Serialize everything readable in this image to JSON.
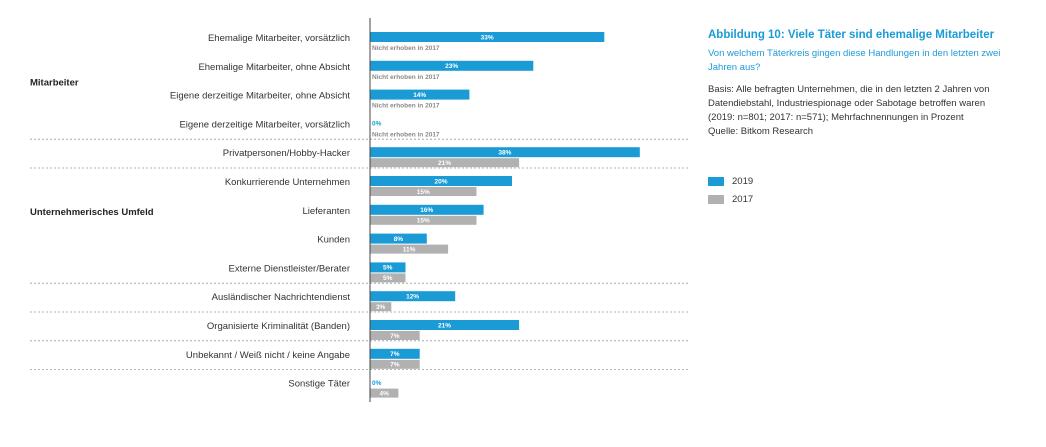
{
  "figure": {
    "title": "Abbildung 10: Viele Täter sind ehemalige Mitarbeiter",
    "subtitle": "Von welchem Täterkreis gingen diese Handlungen in den letzten zwei Jahren aus?",
    "basis_lines": [
      "Basis: Alle befragten Unternehmen, die in den letzten 2 Jahren von",
      "Datendiebstahl, Industriespionage oder Sabotage betroffen waren",
      "(2019: n=801; 2017: n=571); Mehrfachnennungen in Prozent",
      "Quelle: Bitkom Research"
    ]
  },
  "legend": [
    {
      "label": "2019",
      "color": "#1a9bd6"
    },
    {
      "label": "2017",
      "color": "#b1b1b1"
    }
  ],
  "colors": {
    "series_2019": "#1a9bd6",
    "series_2017": "#b1b1b1",
    "separator": "#9a9a9a",
    "axis": "#444444"
  },
  "chart_data": {
    "type": "bar",
    "orientation": "horizontal",
    "unit": "%",
    "xlim": [
      0,
      100
    ],
    "not_surveyed_note": "Nicht erhoben in 2017",
    "groups": [
      {
        "label": "Mitarbeiter",
        "categories": [
          0,
          1,
          2,
          3
        ]
      },
      {
        "label": "Unternehmerisches Umfeld",
        "categories": [
          4,
          5,
          6,
          7,
          8
        ]
      }
    ],
    "categories": [
      "Ehemalige Mitarbeiter, vorsätzlich",
      "Ehemalige Mitarbeiter, ohne Absicht",
      "Eigene derzeitige Mitarbeiter, ohne Absicht",
      "Eigene derzeitige Mitarbeiter, vorsätzlich",
      "Privatpersonen/Hobby-Hacker",
      "Konkurrierende Unternehmen",
      "Lieferanten",
      "Kunden",
      "Externe Dienstleister/Berater",
      "Ausländischer Nachrichtendienst",
      "Organisierte Kriminalität (Banden)",
      "Unbekannt / Weiß nicht / keine Angabe",
      "Sonstige Täter"
    ],
    "separators_after": [
      3,
      4,
      8,
      9,
      10,
      11
    ],
    "series": [
      {
        "name": "2019",
        "values": [
          33,
          23,
          14,
          0,
          38,
          20,
          16,
          8,
          5,
          12,
          21,
          7,
          0
        ]
      },
      {
        "name": "2017",
        "values": [
          null,
          null,
          null,
          null,
          21,
          15,
          15,
          11,
          5,
          3,
          7,
          7,
          4
        ]
      }
    ]
  }
}
